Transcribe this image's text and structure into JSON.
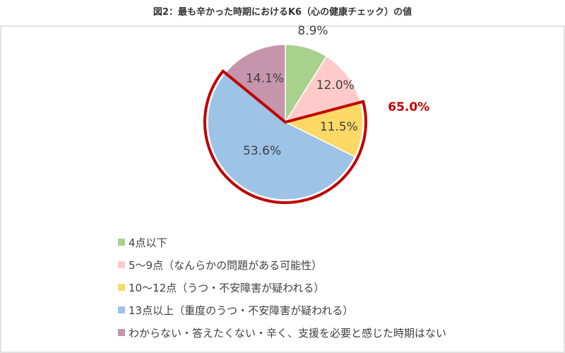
{
  "title": "図2：最も辛かった時期におけるK6（心の健康チェック）の値",
  "chart_data": {
    "type": "pie",
    "categories": [
      "4点以下",
      "5～9点（なんらかの問題がある可能性）",
      "10～12点（うつ・不安障害が疑われる）",
      "13点以上（重度のうつ・不安障害が疑われる）",
      "わからない・答えたくない・辛く、支援を必要と感じた時期はない"
    ],
    "values": [
      8.9,
      12.0,
      11.5,
      53.6,
      14.1
    ],
    "value_labels": [
      "8.9%",
      "12.0%",
      "11.5%",
      "53.6%",
      "14.1%"
    ],
    "colors": [
      "#a9d18e",
      "#ffcaca",
      "#ffd966",
      "#9dc3e6",
      "#c595ab"
    ],
    "highlight": {
      "label": "65.0%",
      "categories": [
        2,
        3
      ],
      "color": "#c00000"
    },
    "legend_position": "bottom"
  }
}
